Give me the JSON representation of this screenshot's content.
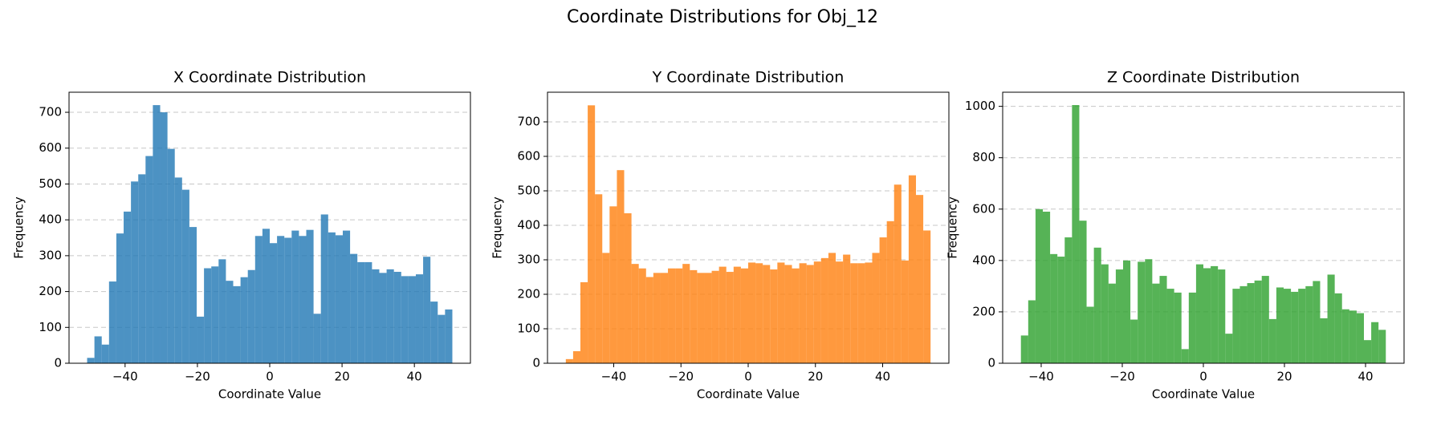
{
  "title": "Coordinate Distributions for Obj_12",
  "chart_data": [
    {
      "type": "histogram",
      "title": "X Coordinate Distribution",
      "xlabel": "Coordinate Value",
      "ylabel": "Frequency",
      "color": "#1f77b4",
      "grid": true,
      "bins": [
        -50.5,
        -48.48,
        -46.46,
        -44.44,
        -42.42,
        -40.4,
        -38.38,
        -36.36,
        -34.34,
        -32.32,
        -30.3,
        -28.28,
        -26.26,
        -24.24,
        -22.22,
        -20.2,
        -18.18,
        -16.16,
        -14.14,
        -12.12,
        -10.1,
        -8.08,
        -6.06,
        -4.04,
        -2.02,
        0,
        2.02,
        4.04,
        6.06,
        8.08,
        10.1,
        12.12,
        14.14,
        16.16,
        18.18,
        20.2,
        22.22,
        24.24,
        26.26,
        28.28,
        30.3,
        32.32,
        34.34,
        36.36,
        38.38,
        40.4,
        42.42,
        44.44,
        46.46,
        48.48,
        50.5
      ],
      "values": [
        15,
        75,
        52,
        228,
        362,
        423,
        507,
        527,
        578,
        720,
        700,
        598,
        518,
        484,
        380,
        130,
        265,
        270,
        290,
        230,
        215,
        240,
        260,
        355,
        375,
        335,
        355,
        350,
        370,
        355,
        372,
        138,
        415,
        365,
        357,
        370,
        305,
        282,
        282,
        262,
        252,
        262,
        255,
        243,
        243,
        248,
        297,
        172,
        135,
        150
      ],
      "xlim": [
        -55.5,
        55.5
      ],
      "ylim": [
        0,
        756
      ],
      "xticks": [
        {
          "value": -40,
          "label": "−40"
        },
        {
          "value": -20,
          "label": "−20"
        },
        0,
        20,
        40
      ],
      "yticks": [
        0,
        100,
        200,
        300,
        400,
        500,
        600,
        700
      ]
    },
    {
      "type": "histogram",
      "title": "Y Coordinate Distribution",
      "xlabel": "Coordinate Value",
      "ylabel": "Frequency",
      "color": "#ff7f0e",
      "grid": true,
      "bins": [
        -54.25,
        -52.08,
        -49.91,
        -47.74,
        -45.57,
        -43.4,
        -41.23,
        -39.06,
        -36.89,
        -34.72,
        -32.55,
        -30.38,
        -28.21,
        -26.04,
        -23.87,
        -21.7,
        -19.53,
        -17.36,
        -15.19,
        -13.02,
        -10.85,
        -8.68,
        -6.51,
        -4.34,
        -2.17,
        0,
        2.17,
        4.34,
        6.51,
        8.68,
        10.85,
        13.02,
        15.19,
        17.36,
        19.53,
        21.7,
        23.87,
        26.04,
        28.21,
        30.38,
        32.55,
        34.72,
        36.89,
        39.06,
        41.23,
        43.4,
        45.57,
        47.74,
        49.91,
        52.08,
        54.25
      ],
      "values": [
        12,
        35,
        235,
        748,
        490,
        320,
        455,
        560,
        435,
        288,
        275,
        250,
        262,
        262,
        275,
        275,
        288,
        270,
        262,
        262,
        268,
        280,
        265,
        280,
        275,
        292,
        290,
        285,
        272,
        292,
        285,
        275,
        290,
        285,
        295,
        305,
        320,
        295,
        315,
        290,
        290,
        292,
        320,
        365,
        412,
        518,
        298,
        545,
        488,
        385
      ],
      "xlim": [
        -59.7,
        59.7
      ],
      "ylim": [
        0,
        786
      ],
      "xticks": [
        {
          "value": -40,
          "label": "−40"
        },
        {
          "value": -20,
          "label": "−20"
        },
        0,
        20,
        40
      ],
      "yticks": [
        0,
        100,
        200,
        300,
        400,
        500,
        600,
        700
      ]
    },
    {
      "type": "histogram",
      "title": "Z Coordinate Distribution",
      "xlabel": "Coordinate Value",
      "ylabel": "Frequency",
      "color": "#2ca02c",
      "grid": true,
      "bins": [
        -45,
        -43.2,
        -41.4,
        -39.6,
        -37.8,
        -36,
        -34.2,
        -32.4,
        -30.6,
        -28.8,
        -27,
        -25.2,
        -23.4,
        -21.6,
        -19.8,
        -18,
        -16.2,
        -14.4,
        -12.6,
        -10.8,
        -9,
        -7.2,
        -5.4,
        -3.6,
        -1.8,
        0,
        1.8,
        3.6,
        5.4,
        7.2,
        9,
        10.8,
        12.6,
        14.4,
        16.2,
        18,
        19.8,
        21.6,
        23.4,
        25.2,
        27,
        28.8,
        30.6,
        32.4,
        34.2,
        36,
        37.8,
        39.6,
        41.4,
        43.2,
        45
      ],
      "values": [
        108,
        245,
        600,
        590,
        425,
        415,
        490,
        1005,
        555,
        220,
        450,
        385,
        310,
        365,
        400,
        170,
        395,
        405,
        310,
        340,
        290,
        275,
        55,
        275,
        385,
        370,
        378,
        365,
        115,
        290,
        300,
        312,
        322,
        340,
        172,
        295,
        290,
        278,
        290,
        300,
        320,
        175,
        345,
        272,
        210,
        205,
        195,
        90,
        160,
        130
      ],
      "xlim": [
        -49.5,
        49.5
      ],
      "ylim": [
        0,
        1055
      ],
      "xticks": [
        {
          "value": -40,
          "label": "−40"
        },
        {
          "value": -20,
          "label": "−20"
        },
        0,
        20,
        40
      ],
      "yticks": [
        0,
        200,
        400,
        600,
        800,
        1000
      ]
    }
  ]
}
